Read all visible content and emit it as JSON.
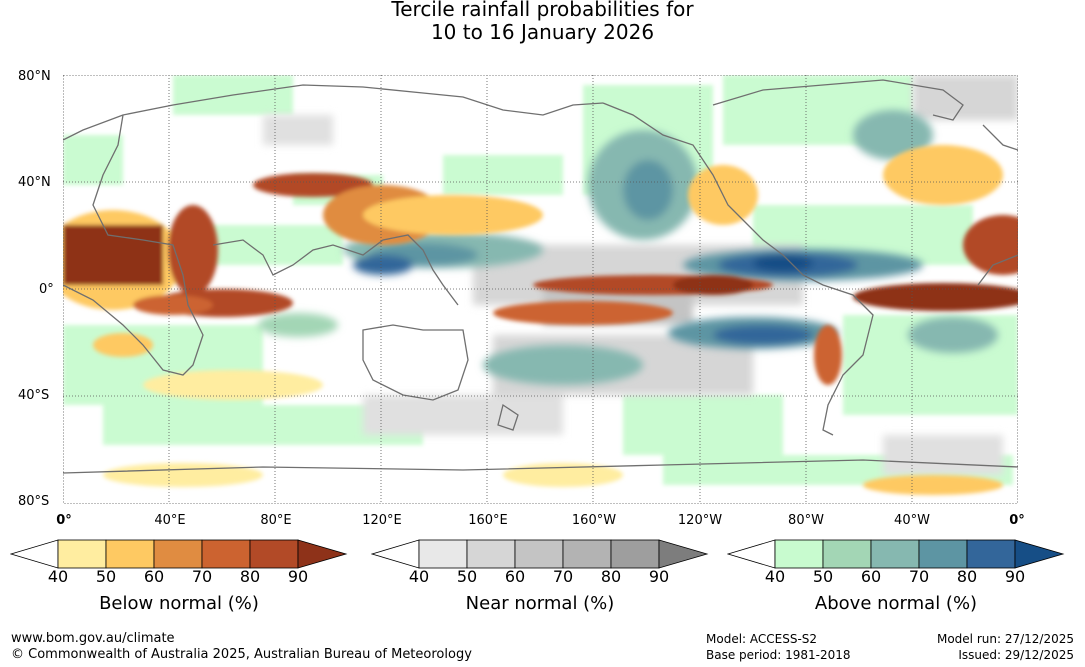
{
  "title_line1": "Tercile rainfall probabilities for",
  "title_line2": "10 to 16 January 2026",
  "map": {
    "lat_labels": [
      "80°N",
      "40°N",
      "0°",
      "40°S",
      "80°S"
    ],
    "lon_labels": [
      "0°",
      "40°E",
      "80°E",
      "120°E",
      "160°E",
      "160°W",
      "120°W",
      "80°W",
      "40°W",
      "0°"
    ]
  },
  "legends": [
    {
      "title": "Below normal (%)",
      "ticks": [
        "40",
        "50",
        "60",
        "70",
        "80",
        "90"
      ],
      "colors": [
        "#ffffff",
        "#ffeda0",
        "#fec962",
        "#e08c41",
        "#cc6330",
        "#b24a27",
        "#8e3219"
      ]
    },
    {
      "title": "Near normal (%)",
      "ticks": [
        "40",
        "50",
        "60",
        "70",
        "80",
        "90"
      ],
      "colors": [
        "#ffffff",
        "#e8e8e8",
        "#d6d6d6",
        "#c4c4c4",
        "#b3b3b3",
        "#9e9e9e",
        "#7d7d7d"
      ]
    },
    {
      "title": "Above normal (%)",
      "ticks": [
        "40",
        "50",
        "60",
        "70",
        "80",
        "90"
      ],
      "colors": [
        "#ffffff",
        "#c8fbcf",
        "#a3d6b5",
        "#86b8b0",
        "#5d95a3",
        "#33669a",
        "#164e86"
      ]
    }
  ],
  "footer": {
    "website": "www.bom.gov.au/climate",
    "copyright": "© Commonwealth of Australia 2025, Australian Bureau of Meteorology",
    "model": "Model: ACCESS-S2",
    "base_period": "Base period: 1981-2018",
    "model_run": "Model run: 27/12/2025",
    "issued": "Issued: 29/12/2025"
  }
}
